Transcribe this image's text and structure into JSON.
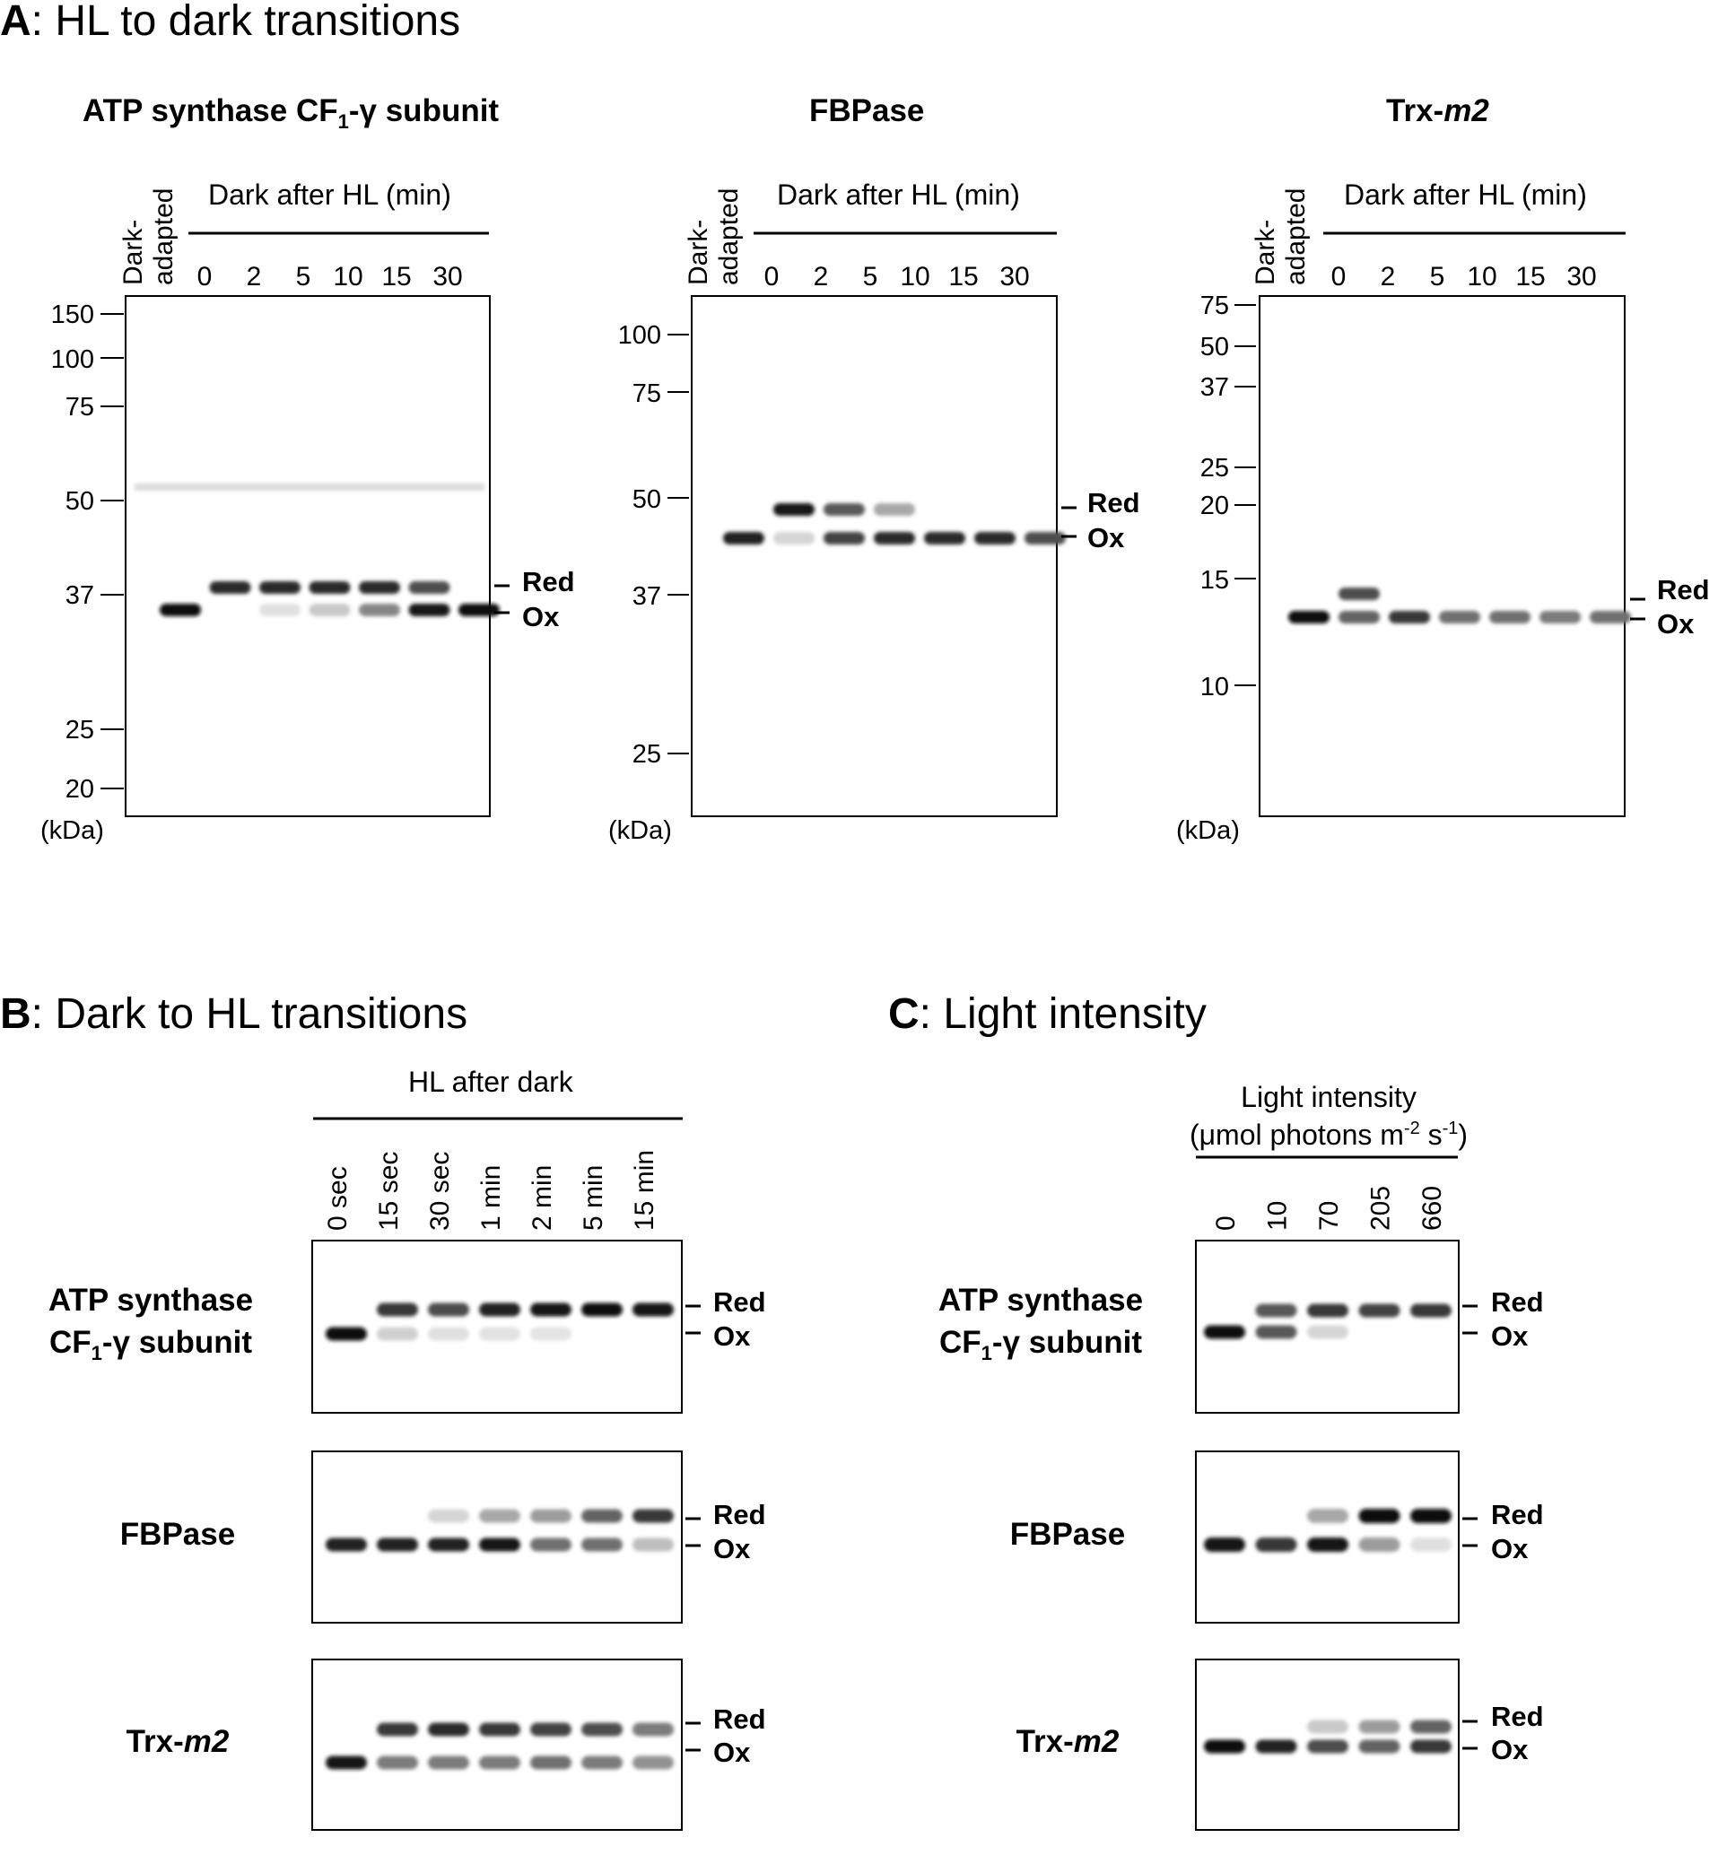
{
  "sectionA": {
    "letter": "A",
    "title": ": HL to dark transitions",
    "lane_group_label": "Dark after HL (min)",
    "dark_adapted_line1": "Dark-",
    "dark_adapted_line2": "adapted",
    "lanes": [
      "0",
      "2",
      "5",
      "10",
      "15",
      "30"
    ],
    "kda_label": "(kDa)",
    "red_label": "Red",
    "ox_label": "Ox",
    "panels": [
      {
        "title_main": "ATP synthase CF",
        "title_sub": "1",
        "title_rest": "-γ subunit",
        "mw_markers": [
          "150",
          "100",
          "75",
          "50",
          "37",
          "25",
          "20"
        ]
      },
      {
        "title_main": "FBPase",
        "title_sub": "",
        "title_rest": "",
        "mw_markers": [
          "100",
          "75",
          "50",
          "37",
          "25"
        ]
      },
      {
        "title_main": "Trx-",
        "title_sub": "",
        "title_rest": "m2",
        "mw_markers": [
          "75",
          "50",
          "37",
          "25",
          "20",
          "15",
          "10"
        ]
      }
    ]
  },
  "sectionB": {
    "letter": "B",
    "title": ": Dark to HL transitions",
    "lane_group_label": "HL after dark",
    "lanes": [
      "0 sec",
      "15 sec",
      "30 sec",
      "1 min",
      "2 min",
      "5 min",
      "15 min"
    ]
  },
  "sectionC": {
    "letter": "C",
    "title": ": Light intensity",
    "lane_group_label_line1": "Light intensity",
    "lane_group_label_line2_a": "(μmol photons m",
    "lane_group_label_line2_sup1": "-2",
    "lane_group_label_line2_b": " s",
    "lane_group_label_line2_sup2": "-1",
    "lane_group_label_line2_c": ")",
    "lanes": [
      "0",
      "10",
      "70",
      "205",
      "660"
    ]
  },
  "row_labels": {
    "atp_line1": "ATP synthase",
    "atp_line2_main": "CF",
    "atp_line2_sub": "1",
    "atp_line2_rest": "-γ subunit",
    "fbpase": "FBPase",
    "trx_main": "Trx-",
    "trx_italic": "m2"
  },
  "band_labels": {
    "red": "Red",
    "ox": "Ox"
  },
  "band_intensity": {
    "A_atp": {
      "red": [
        0,
        0.85,
        0.85,
        0.85,
        0.85,
        0.7,
        0
      ],
      "ox": [
        1,
        0,
        0.05,
        0.15,
        0.45,
        0.95,
        1
      ]
    },
    "A_fbp": {
      "red": [
        0,
        0.95,
        0.65,
        0.3,
        0,
        0,
        0
      ],
      "ox": [
        0.9,
        0.1,
        0.75,
        0.85,
        0.85,
        0.85,
        0.7
      ]
    },
    "A_trx": {
      "red": [
        0,
        0.7,
        0,
        0,
        0,
        0,
        0
      ],
      "ox": [
        1,
        0.6,
        0.8,
        0.55,
        0.55,
        0.5,
        0.55
      ]
    },
    "B_atp": {
      "red": [
        0,
        0.8,
        0.7,
        0.9,
        0.95,
        1,
        0.95
      ],
      "ox": [
        1,
        0.12,
        0.05,
        0.04,
        0.03,
        0,
        0
      ]
    },
    "B_fbp": {
      "red": [
        0,
        0,
        0.1,
        0.3,
        0.35,
        0.6,
        0.8
      ],
      "ox": [
        0.9,
        0.9,
        0.9,
        0.95,
        0.55,
        0.55,
        0.2
      ]
    },
    "B_trx": {
      "red": [
        0,
        0.8,
        0.85,
        0.8,
        0.75,
        0.7,
        0.5
      ],
      "ox": [
        0.95,
        0.5,
        0.5,
        0.5,
        0.55,
        0.5,
        0.4
      ]
    },
    "C_atp": {
      "red": [
        0,
        0.65,
        0.8,
        0.75,
        0.8
      ],
      "ox": [
        1,
        0.65,
        0.1,
        0,
        0
      ]
    },
    "C_fbp": {
      "red": [
        0,
        0,
        0.3,
        1,
        1
      ],
      "ox": [
        0.95,
        0.8,
        0.95,
        0.35,
        0.05
      ]
    },
    "C_trx": {
      "red": [
        0,
        0,
        0.15,
        0.35,
        0.6
      ],
      "ox": [
        1,
        0.9,
        0.7,
        0.6,
        0.8
      ]
    }
  }
}
